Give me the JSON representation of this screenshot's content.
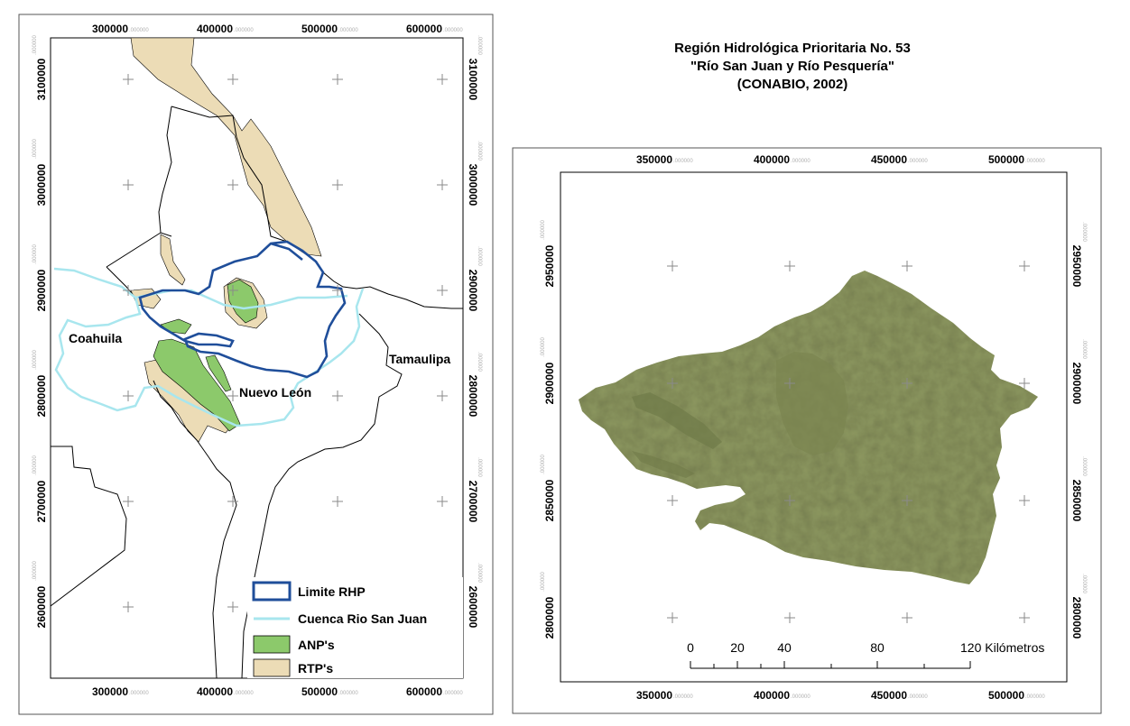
{
  "left_map": {
    "top_ticks": [
      {
        "num": "300000",
        "dec": ".000000"
      },
      {
        "num": "400000",
        "dec": ".000000"
      },
      {
        "num": "500000",
        "dec": ".000000"
      },
      {
        "num": "600000",
        "dec": ".000000"
      }
    ],
    "bottom_ticks": [
      {
        "num": "300000",
        "dec": ".000000"
      },
      {
        "num": "400000",
        "dec": ".000000"
      },
      {
        "num": "500000",
        "dec": ".000000"
      },
      {
        "num": "600000",
        "dec": ".000000"
      }
    ],
    "side_ticks": [
      {
        "num": "3100000",
        "dec": ".000000"
      },
      {
        "num": "3000000",
        "dec": ".000000"
      },
      {
        "num": "2900000",
        "dec": ".000000"
      },
      {
        "num": "2800000",
        "dec": ".000000"
      },
      {
        "num": "2700000",
        "dec": ".000000"
      },
      {
        "num": "2600000",
        "dec": ".000000"
      }
    ],
    "labels": {
      "coahuila": "Coahuila",
      "nuevo_leon": "Nuevo León",
      "tamaulipas": "Tamaulipa"
    },
    "legend": [
      {
        "label": "Limite RHP",
        "symbol": "outline",
        "color": "#1f4e9a"
      },
      {
        "label": "Cuenca Rio San Juan",
        "symbol": "line",
        "color": "#a8e6ee"
      },
      {
        "label": "ANP's",
        "symbol": "fill",
        "color": "#8cc96b"
      },
      {
        "label": "RTP's",
        "symbol": "fill",
        "color": "#ecdcb6"
      }
    ],
    "colors": {
      "rtp": "#ecdcb6",
      "anp": "#8cc96b",
      "rhp": "#1f4e9a",
      "cuenca": "#a8e6ee"
    }
  },
  "right_map": {
    "title_lines": [
      "Región Hidrológica Prioritaria No. 53",
      "\"Río San Juan y Río Pesquería\"",
      "(CONABIO, 2002)"
    ],
    "top_ticks": [
      {
        "num": "350000",
        "dec": ".000000"
      },
      {
        "num": "400000",
        "dec": ".000000"
      },
      {
        "num": "450000",
        "dec": ".000000"
      },
      {
        "num": "500000",
        "dec": ".000000"
      }
    ],
    "bottom_ticks": [
      {
        "num": "350000",
        "dec": ".000000"
      },
      {
        "num": "400000",
        "dec": ".000000"
      },
      {
        "num": "450000",
        "dec": ".000000"
      },
      {
        "num": "500000",
        "dec": ".000000"
      }
    ],
    "side_ticks": [
      {
        "num": "2950000",
        "dec": ".000000"
      },
      {
        "num": "2900000",
        "dec": ".000000"
      },
      {
        "num": "2850000",
        "dec": ".000000"
      },
      {
        "num": "2800000",
        "dec": ".000000"
      }
    ],
    "scale_bar": {
      "labels": [
        "0",
        "20",
        "40",
        "80",
        "120 Kilómetros"
      ]
    },
    "colors": {
      "relief": "#8f9a62"
    }
  }
}
